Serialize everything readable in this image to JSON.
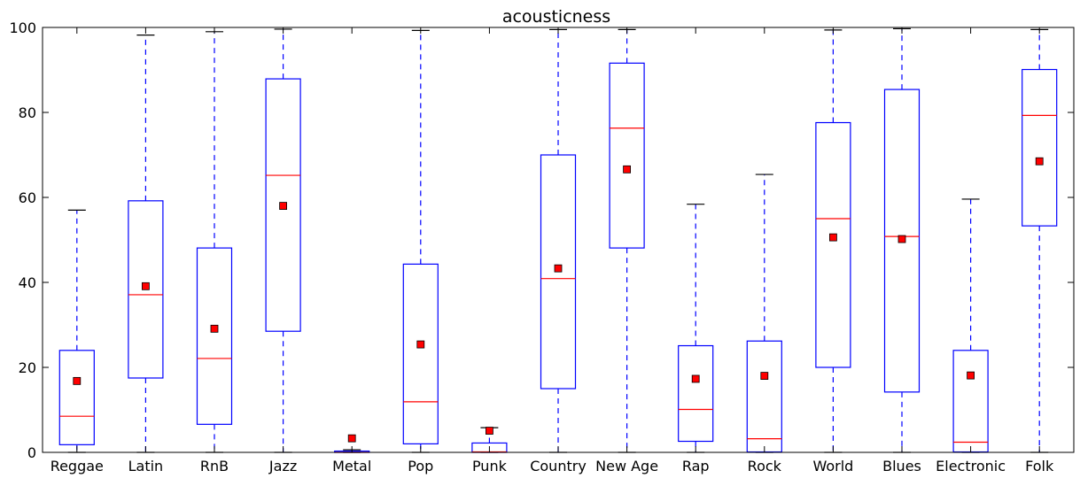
{
  "chart_data": {
    "type": "box",
    "title": "acousticness",
    "xlabel": "",
    "ylabel": "",
    "ylim": [
      0,
      100
    ],
    "yticks": [
      0,
      20,
      40,
      60,
      80,
      100
    ],
    "grid": false,
    "legend": "none",
    "colors": {
      "box": "#0000ff",
      "median": "#ff0000",
      "mean_marker": "#ff0000",
      "whisker_cap": "#000000"
    },
    "categories": [
      "Reggae",
      "Latin",
      "RnB",
      "Jazz",
      "Metal",
      "Pop",
      "Punk",
      "Country",
      "New Age",
      "Rap",
      "Rock",
      "World",
      "Blues",
      "Electronic",
      "Folk"
    ],
    "boxes": [
      {
        "whisker_low": 0,
        "q1": 1.8,
        "median": 8.5,
        "q3": 24.0,
        "whisker_high": 57.0,
        "mean": 16.8
      },
      {
        "whisker_low": 0,
        "q1": 17.5,
        "median": 37.1,
        "q3": 59.2,
        "whisker_high": 98.2,
        "mean": 39.1
      },
      {
        "whisker_low": 0,
        "q1": 6.6,
        "median": 22.1,
        "q3": 48.1,
        "whisker_high": 99.0,
        "mean": 29.1
      },
      {
        "whisker_low": 0,
        "q1": 28.5,
        "median": 65.2,
        "q3": 87.9,
        "whisker_high": 99.6,
        "mean": 58.0
      },
      {
        "whisker_low": 0,
        "q1": 0.0,
        "median": 0.0,
        "q3": 0.3,
        "whisker_high": 0.6,
        "mean": 3.3
      },
      {
        "whisker_low": 0,
        "q1": 2.0,
        "median": 11.9,
        "q3": 44.3,
        "whisker_high": 99.3,
        "mean": 25.4
      },
      {
        "whisker_low": 0,
        "q1": 0.0,
        "median": 0.1,
        "q3": 2.2,
        "whisker_high": 5.8,
        "mean": 5.1
      },
      {
        "whisker_low": 0,
        "q1": 15.0,
        "median": 40.9,
        "q3": 70.0,
        "whisker_high": 99.5,
        "mean": 43.3
      },
      {
        "whisker_low": 0,
        "q1": 48.1,
        "median": 76.3,
        "q3": 91.6,
        "whisker_high": 99.5,
        "mean": 66.6
      },
      {
        "whisker_low": 0,
        "q1": 2.6,
        "median": 10.1,
        "q3": 25.1,
        "whisker_high": 58.4,
        "mean": 17.3
      },
      {
        "whisker_low": 0,
        "q1": 0.1,
        "median": 3.2,
        "q3": 26.2,
        "whisker_high": 65.4,
        "mean": 18.0
      },
      {
        "whisker_low": 0,
        "q1": 20.0,
        "median": 55.0,
        "q3": 77.6,
        "whisker_high": 99.4,
        "mean": 50.6
      },
      {
        "whisker_low": 0,
        "q1": 14.2,
        "median": 50.8,
        "q3": 85.4,
        "whisker_high": 99.7,
        "mean": 50.2
      },
      {
        "whisker_low": 0,
        "q1": 0.1,
        "median": 2.4,
        "q3": 24.0,
        "whisker_high": 59.6,
        "mean": 18.1
      },
      {
        "whisker_low": 0,
        "q1": 53.3,
        "median": 79.3,
        "q3": 90.1,
        "whisker_high": 99.5,
        "mean": 68.5
      }
    ]
  }
}
